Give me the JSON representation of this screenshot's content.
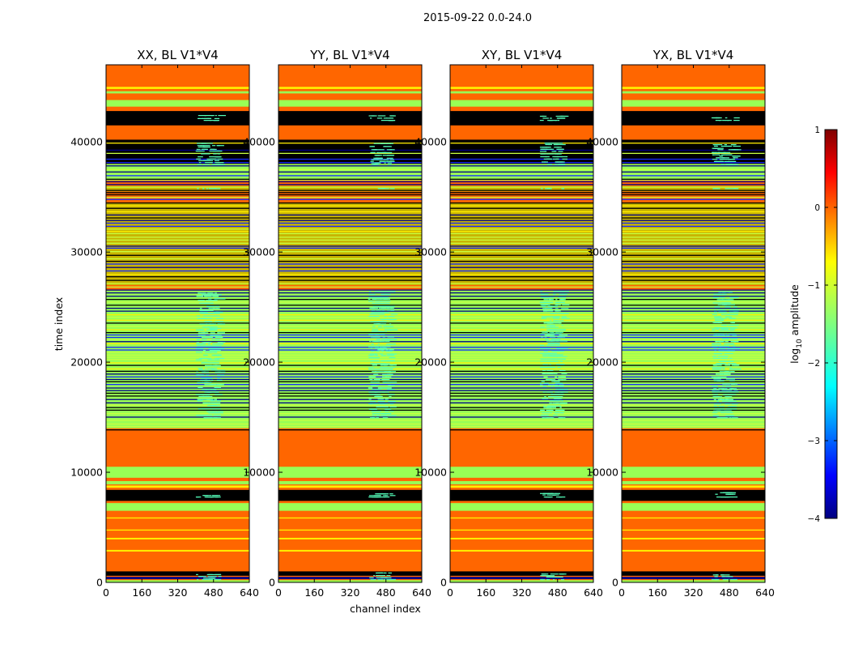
{
  "chart_data": {
    "type": "heatmap",
    "suptitle": "2015-09-22 0.0-24.0",
    "panels": [
      {
        "title": "XX, BL V1*V4"
      },
      {
        "title": "YY, BL V1*V4"
      },
      {
        "title": "XY, BL V1*V4"
      },
      {
        "title": "YX, BL V1*V4"
      }
    ],
    "xlabel": "channel index",
    "ylabel": "time index",
    "xlim": [
      0,
      640
    ],
    "ylim": [
      0,
      47000
    ],
    "xticks": [
      0,
      160,
      320,
      480,
      640
    ],
    "yticks": [
      0,
      10000,
      20000,
      30000,
      40000
    ],
    "colorbar": {
      "label": "log",
      "label_sub": "10",
      "label_suffix": " amplitude",
      "range": [
        -4,
        1
      ],
      "ticks": [
        "1",
        "0",
        "−1",
        "−2",
        "−3",
        "−4"
      ],
      "colormap": "jet"
    },
    "colors": {
      "background": "#ff6600",
      "green": "#99ff55",
      "yellow": "#ffee00",
      "black": "#000000",
      "navy": "#000088",
      "blue": "#1428ff",
      "cyan": "#55ffbb",
      "lightgreen": "#c8ff40",
      "olive": "#c8b400"
    },
    "bands": [
      {
        "y0": 600,
        "y1": 1000,
        "color": "black"
      },
      {
        "y0": 300,
        "y1": 500,
        "color": "navy"
      },
      {
        "y0": 0,
        "y1": 200,
        "color": "green"
      },
      {
        "y0": 2800,
        "y1": 2950,
        "color": "yellow"
      },
      {
        "y0": 3900,
        "y1": 4050,
        "color": "yellow"
      },
      {
        "y0": 4700,
        "y1": 4800,
        "color": "yellow"
      },
      {
        "y0": 5800,
        "y1": 5900,
        "color": "yellow"
      },
      {
        "y0": 6500,
        "y1": 7200,
        "color": "green"
      },
      {
        "y0": 7400,
        "y1": 8400,
        "color": "black"
      },
      {
        "y0": 8600,
        "y1": 8800,
        "color": "yellow"
      },
      {
        "y0": 8900,
        "y1": 9200,
        "color": "green"
      },
      {
        "y0": 9500,
        "y1": 10500,
        "color": "green"
      },
      {
        "y0": 13800,
        "y1": 13900,
        "color": "black"
      },
      {
        "y0": 14000,
        "y1": 26500,
        "color": "green"
      },
      {
        "y0": 27000,
        "y1": 34500,
        "color": "olive"
      },
      {
        "y0": 35500,
        "y1": 36000,
        "color": "olive"
      },
      {
        "y0": 36500,
        "y1": 38000,
        "color": "green"
      },
      {
        "y0": 38000,
        "y1": 40200,
        "color": "black"
      },
      {
        "y0": 41500,
        "y1": 42800,
        "color": "black"
      },
      {
        "y0": 43200,
        "y1": 43800,
        "color": "green"
      },
      {
        "y0": 44400,
        "y1": 44600,
        "color": "green"
      },
      {
        "y0": 44800,
        "y1": 45000,
        "color": "yellow"
      }
    ]
  }
}
